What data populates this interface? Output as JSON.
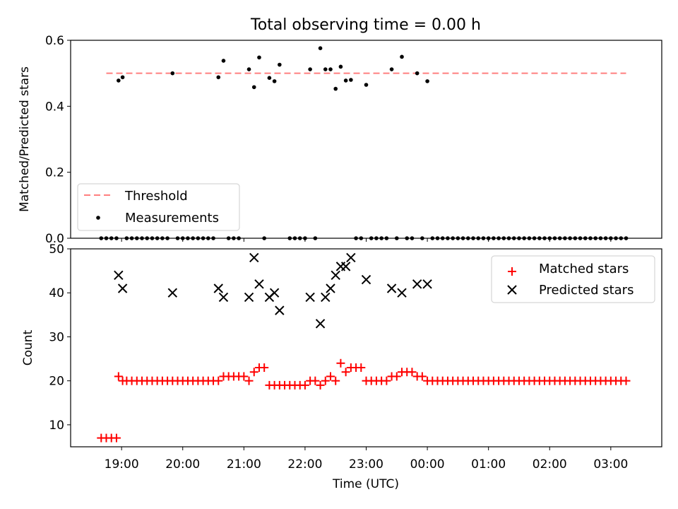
{
  "title": "Total observing time = 0.00 h",
  "chart_data": [
    {
      "type": "scatter",
      "ylabel": "Matched/Predicted stars",
      "ylim": [
        0,
        0.6
      ],
      "yticks": [
        0.0,
        0.2,
        0.4,
        0.6
      ],
      "ytick_labels": [
        "0.0",
        "0.2",
        "0.4",
        "0.6"
      ],
      "legend": {
        "placement": "lower-left",
        "entries": [
          "Threshold",
          "Measurements"
        ]
      },
      "threshold": {
        "name": "Threshold",
        "value": 0.5,
        "color": "#ff7f7f",
        "x_range": [
          "18:45",
          "03:15"
        ]
      },
      "series": [
        {
          "name": "Measurements",
          "color": "#000000",
          "points": [
            [
              "18:40",
              0
            ],
            [
              "18:45",
              0
            ],
            [
              "18:50",
              0
            ],
            [
              "18:55",
              0
            ],
            [
              "18:57",
              0.478
            ],
            [
              "19:01",
              0.488
            ],
            [
              "19:05",
              0
            ],
            [
              "19:10",
              0
            ],
            [
              "19:15",
              0
            ],
            [
              "19:20",
              0
            ],
            [
              "19:25",
              0
            ],
            [
              "19:30",
              0
            ],
            [
              "19:35",
              0
            ],
            [
              "19:40",
              0
            ],
            [
              "19:45",
              0
            ],
            [
              "19:50",
              0.5
            ],
            [
              "19:55",
              0
            ],
            [
              "20:00",
              0
            ],
            [
              "20:05",
              0
            ],
            [
              "20:10",
              0
            ],
            [
              "20:15",
              0
            ],
            [
              "20:20",
              0
            ],
            [
              "20:25",
              0
            ],
            [
              "20:30",
              0
            ],
            [
              "20:35",
              0.488
            ],
            [
              "20:40",
              0.538
            ],
            [
              "20:45",
              0
            ],
            [
              "20:50",
              0
            ],
            [
              "20:55",
              0
            ],
            [
              "21:05",
              0.512
            ],
            [
              "21:10",
              0.458
            ],
            [
              "21:15",
              0.548
            ],
            [
              "21:20",
              0
            ],
            [
              "21:25",
              0.486
            ],
            [
              "21:30",
              0.476
            ],
            [
              "21:35",
              0.526
            ],
            [
              "21:45",
              0
            ],
            [
              "21:50",
              0
            ],
            [
              "21:55",
              0
            ],
            [
              "22:00",
              0
            ],
            [
              "22:05",
              0.512
            ],
            [
              "22:10",
              0
            ],
            [
              "22:15",
              0.576
            ],
            [
              "22:20",
              0.512
            ],
            [
              "22:25",
              0.512
            ],
            [
              "22:30",
              0.453
            ],
            [
              "22:35",
              0.52
            ],
            [
              "22:40",
              0.478
            ],
            [
              "22:45",
              0.48
            ],
            [
              "22:50",
              0
            ],
            [
              "22:55",
              0
            ],
            [
              "23:00",
              0.465
            ],
            [
              "23:05",
              0
            ],
            [
              "23:10",
              0
            ],
            [
              "23:15",
              0
            ],
            [
              "23:20",
              0
            ],
            [
              "23:25",
              0.512
            ],
            [
              "23:30",
              0
            ],
            [
              "23:35",
              0.55
            ],
            [
              "23:40",
              0
            ],
            [
              "23:45",
              0
            ],
            [
              "23:50",
              0.5
            ],
            [
              "23:55",
              0
            ],
            [
              "00:00",
              0.476
            ],
            [
              "00:05",
              0
            ],
            [
              "00:10",
              0
            ],
            [
              "00:15",
              0
            ],
            [
              "00:20",
              0
            ],
            [
              "00:25",
              0
            ],
            [
              "00:30",
              0
            ],
            [
              "00:35",
              0
            ],
            [
              "00:40",
              0
            ],
            [
              "00:45",
              0
            ],
            [
              "00:50",
              0
            ],
            [
              "00:55",
              0
            ],
            [
              "01:00",
              0
            ],
            [
              "01:05",
              0
            ],
            [
              "01:10",
              0
            ],
            [
              "01:15",
              0
            ],
            [
              "01:20",
              0
            ],
            [
              "01:25",
              0
            ],
            [
              "01:30",
              0
            ],
            [
              "01:35",
              0
            ],
            [
              "01:40",
              0
            ],
            [
              "01:45",
              0
            ],
            [
              "01:50",
              0
            ],
            [
              "01:55",
              0
            ],
            [
              "02:00",
              0
            ],
            [
              "02:05",
              0
            ],
            [
              "02:10",
              0
            ],
            [
              "02:15",
              0
            ],
            [
              "02:20",
              0
            ],
            [
              "02:25",
              0
            ],
            [
              "02:30",
              0
            ],
            [
              "02:35",
              0
            ],
            [
              "02:40",
              0
            ],
            [
              "02:45",
              0
            ],
            [
              "02:50",
              0
            ],
            [
              "02:55",
              0
            ],
            [
              "03:00",
              0
            ],
            [
              "03:05",
              0
            ],
            [
              "03:10",
              0
            ],
            [
              "03:15",
              0
            ]
          ]
        }
      ]
    },
    {
      "type": "scatter",
      "xlabel": "Time (UTC)",
      "ylabel": "Count",
      "ylim": [
        5,
        50
      ],
      "yticks": [
        10,
        20,
        30,
        40,
        50
      ],
      "ytick_labels": [
        "10",
        "20",
        "30",
        "40",
        "50"
      ],
      "x_range": [
        "18:10",
        "03:50"
      ],
      "xticks": [
        "19:00",
        "20:00",
        "21:00",
        "22:00",
        "23:00",
        "00:00",
        "01:00",
        "02:00",
        "03:00"
      ],
      "xtick_labels": [
        "19:00",
        "20:00",
        "21:00",
        "22:00",
        "23:00",
        "00:00",
        "01:00",
        "02:00",
        "03:00"
      ],
      "legend": {
        "placement": "upper-right",
        "entries": [
          "Matched stars",
          "Predicted stars"
        ]
      },
      "series": [
        {
          "name": "Matched stars",
          "marker": "plus",
          "color": "#ff0000",
          "points": [
            [
              "18:40",
              7
            ],
            [
              "18:45",
              7
            ],
            [
              "18:50",
              7
            ],
            [
              "18:55",
              7
            ],
            [
              "18:57",
              21
            ],
            [
              "19:01",
              20
            ],
            [
              "19:05",
              20
            ],
            [
              "19:10",
              20
            ],
            [
              "19:15",
              20
            ],
            [
              "19:20",
              20
            ],
            [
              "19:25",
              20
            ],
            [
              "19:30",
              20
            ],
            [
              "19:35",
              20
            ],
            [
              "19:40",
              20
            ],
            [
              "19:45",
              20
            ],
            [
              "19:50",
              20
            ],
            [
              "19:55",
              20
            ],
            [
              "20:00",
              20
            ],
            [
              "20:05",
              20
            ],
            [
              "20:10",
              20
            ],
            [
              "20:15",
              20
            ],
            [
              "20:20",
              20
            ],
            [
              "20:25",
              20
            ],
            [
              "20:30",
              20
            ],
            [
              "20:35",
              20
            ],
            [
              "20:40",
              21
            ],
            [
              "20:45",
              21
            ],
            [
              "20:50",
              21
            ],
            [
              "20:55",
              21
            ],
            [
              "21:00",
              21
            ],
            [
              "21:05",
              20
            ],
            [
              "21:10",
              22
            ],
            [
              "21:15",
              23
            ],
            [
              "21:20",
              23
            ],
            [
              "21:25",
              19
            ],
            [
              "21:30",
              19
            ],
            [
              "21:35",
              19
            ],
            [
              "21:40",
              19
            ],
            [
              "21:45",
              19
            ],
            [
              "21:50",
              19
            ],
            [
              "21:55",
              19
            ],
            [
              "22:00",
              19
            ],
            [
              "22:05",
              20
            ],
            [
              "22:10",
              20
            ],
            [
              "22:15",
              19
            ],
            [
              "22:20",
              20
            ],
            [
              "22:25",
              21
            ],
            [
              "22:30",
              20
            ],
            [
              "22:35",
              24
            ],
            [
              "22:40",
              22
            ],
            [
              "22:45",
              23
            ],
            [
              "22:50",
              23
            ],
            [
              "22:55",
              23
            ],
            [
              "23:00",
              20
            ],
            [
              "23:05",
              20
            ],
            [
              "23:10",
              20
            ],
            [
              "23:15",
              20
            ],
            [
              "23:20",
              20
            ],
            [
              "23:25",
              21
            ],
            [
              "23:30",
              21
            ],
            [
              "23:35",
              22
            ],
            [
              "23:40",
              22
            ],
            [
              "23:45",
              22
            ],
            [
              "23:50",
              21
            ],
            [
              "23:55",
              21
            ],
            [
              "00:00",
              20
            ],
            [
              "00:05",
              20
            ],
            [
              "00:10",
              20
            ],
            [
              "00:15",
              20
            ],
            [
              "00:20",
              20
            ],
            [
              "00:25",
              20
            ],
            [
              "00:30",
              20
            ],
            [
              "00:35",
              20
            ],
            [
              "00:40",
              20
            ],
            [
              "00:45",
              20
            ],
            [
              "00:50",
              20
            ],
            [
              "00:55",
              20
            ],
            [
              "01:00",
              20
            ],
            [
              "01:05",
              20
            ],
            [
              "01:10",
              20
            ],
            [
              "01:15",
              20
            ],
            [
              "01:20",
              20
            ],
            [
              "01:25",
              20
            ],
            [
              "01:30",
              20
            ],
            [
              "01:35",
              20
            ],
            [
              "01:40",
              20
            ],
            [
              "01:45",
              20
            ],
            [
              "01:50",
              20
            ],
            [
              "01:55",
              20
            ],
            [
              "02:00",
              20
            ],
            [
              "02:05",
              20
            ],
            [
              "02:10",
              20
            ],
            [
              "02:15",
              20
            ],
            [
              "02:20",
              20
            ],
            [
              "02:25",
              20
            ],
            [
              "02:30",
              20
            ],
            [
              "02:35",
              20
            ],
            [
              "02:40",
              20
            ],
            [
              "02:45",
              20
            ],
            [
              "02:50",
              20
            ],
            [
              "02:55",
              20
            ],
            [
              "03:00",
              20
            ],
            [
              "03:05",
              20
            ],
            [
              "03:10",
              20
            ],
            [
              "03:15",
              20
            ]
          ]
        },
        {
          "name": "Predicted stars",
          "marker": "x",
          "color": "#000000",
          "points": [
            [
              "18:57",
              44
            ],
            [
              "19:01",
              41
            ],
            [
              "19:50",
              40
            ],
            [
              "20:35",
              41
            ],
            [
              "20:40",
              39
            ],
            [
              "21:05",
              39
            ],
            [
              "21:10",
              48
            ],
            [
              "21:15",
              42
            ],
            [
              "21:25",
              39
            ],
            [
              "21:30",
              40
            ],
            [
              "21:35",
              36
            ],
            [
              "22:05",
              39
            ],
            [
              "22:15",
              33
            ],
            [
              "22:20",
              39
            ],
            [
              "22:25",
              41
            ],
            [
              "22:30",
              44
            ],
            [
              "22:35",
              46
            ],
            [
              "22:40",
              46
            ],
            [
              "22:45",
              48
            ],
            [
              "23:00",
              43
            ],
            [
              "23:25",
              41
            ],
            [
              "23:35",
              40
            ],
            [
              "23:50",
              42
            ],
            [
              "00:00",
              42
            ]
          ]
        }
      ]
    }
  ]
}
